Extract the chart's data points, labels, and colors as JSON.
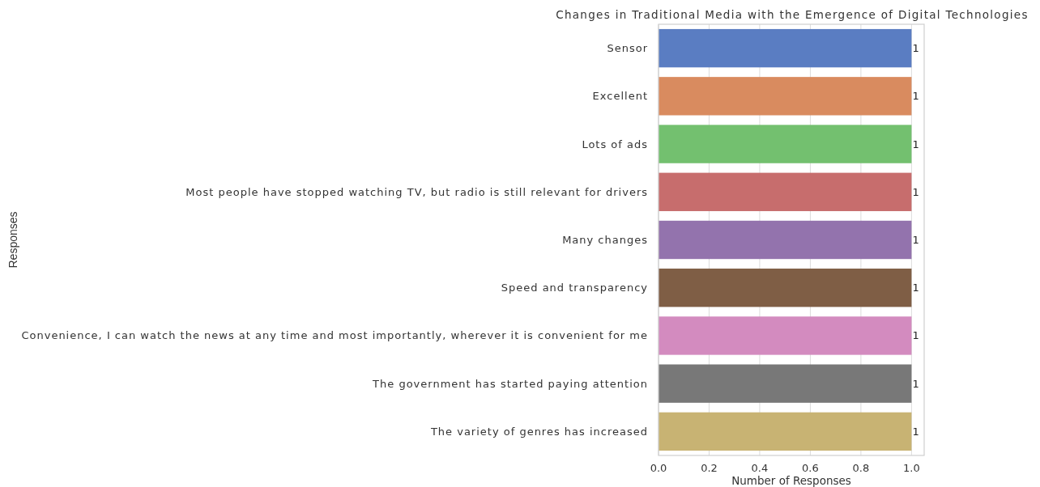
{
  "chart_data": {
    "type": "bar",
    "orientation": "horizontal",
    "title": "Changes in Traditional Media with the Emergence of Digital Technologies",
    "xlabel": "Number of Responses",
    "ylabel": "Responses",
    "categories": [
      "Sensor",
      "Excellent",
      "Lots of ads",
      "Most people have stopped watching TV, but radio is still relevant for drivers",
      "Many changes",
      "Speed and transparency",
      "Convenience, I can watch the news at any time and most importantly, wherever it is convenient for me",
      "The government has started paying attention",
      "The variety of genres has increased"
    ],
    "values": [
      1,
      1,
      1,
      1,
      1,
      1,
      1,
      1,
      1
    ],
    "colors": [
      "#5a7dc2",
      "#d98b5f",
      "#73c06f",
      "#c76d6d",
      "#9373ad",
      "#7f5e45",
      "#d38bbf",
      "#787878",
      "#c8b373"
    ],
    "xlim": [
      0,
      1.05
    ],
    "xticks": [
      {
        "value": 0,
        "label": "0.0"
      },
      {
        "value": 0.2,
        "label": "0.2"
      },
      {
        "value": 0.4,
        "label": "0.4"
      },
      {
        "value": 0.6,
        "label": "0.6"
      },
      {
        "value": 0.8,
        "label": "0.8"
      },
      {
        "value": 1,
        "label": "1.0"
      }
    ],
    "grid": "x",
    "data_labels": true
  }
}
